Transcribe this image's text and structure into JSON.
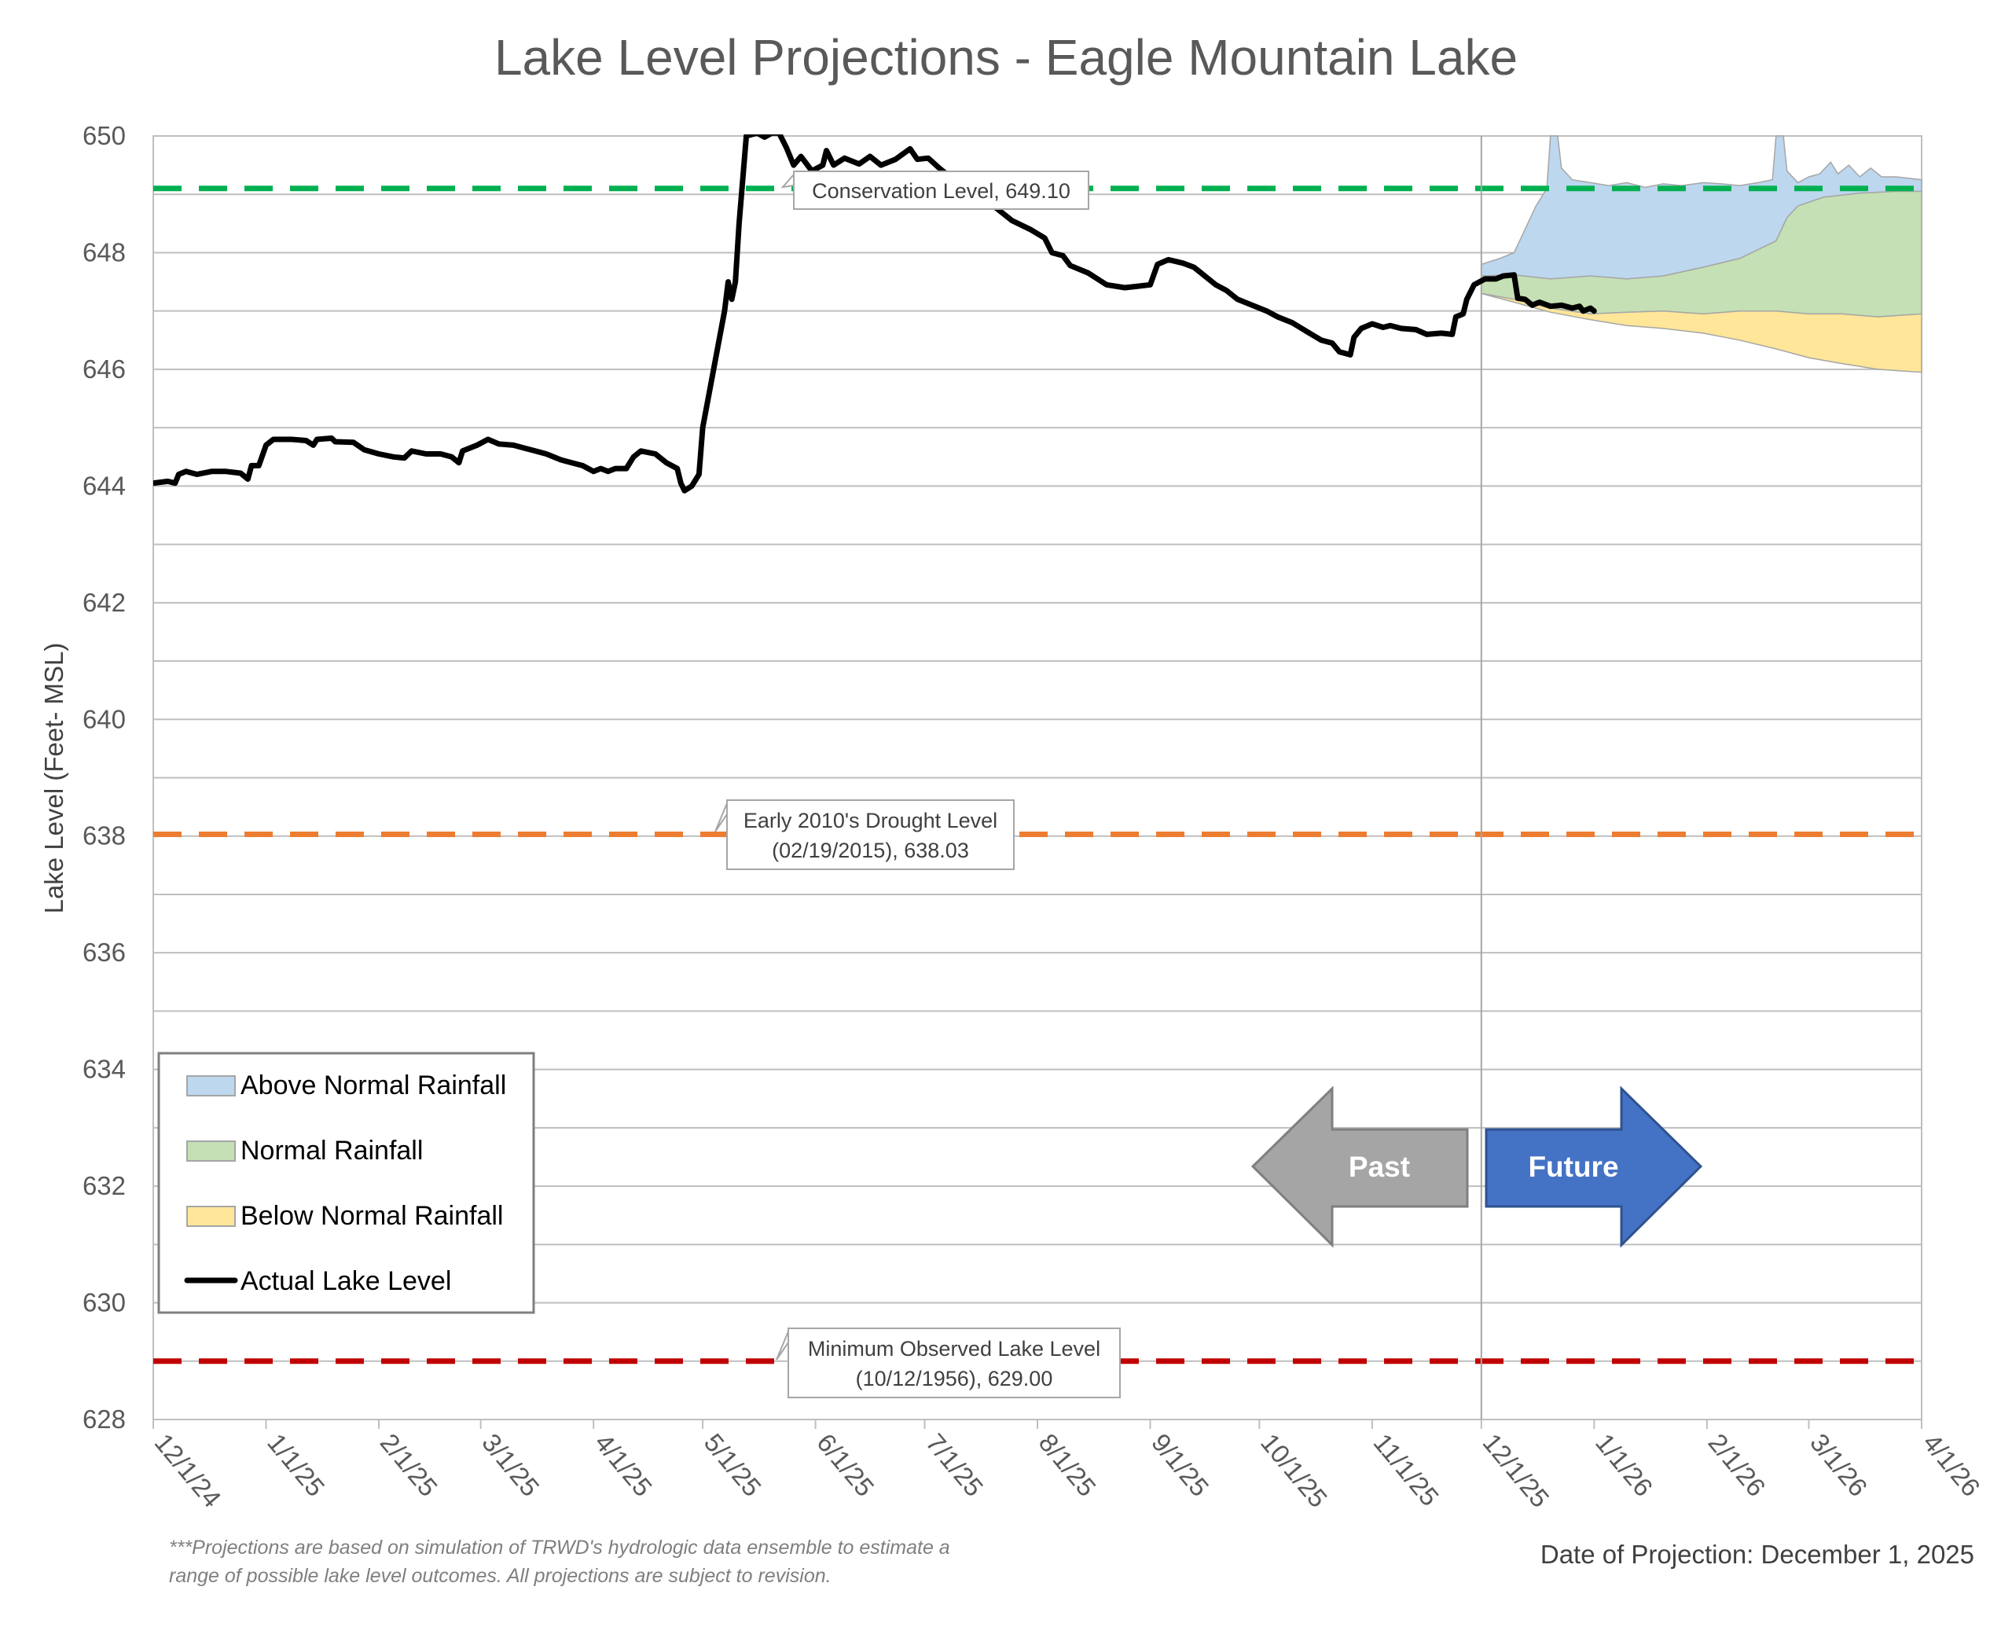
{
  "chart_data": {
    "type": "line",
    "title": "Lake Level Projections - Eagle Mountain Lake",
    "xlabel": "",
    "ylabel": "Lake Level (Feet- MSL)",
    "ylim": [
      628,
      650
    ],
    "yticks": [
      "628",
      "630",
      "632",
      "634",
      "636",
      "638",
      "640",
      "642",
      "644",
      "646",
      "648",
      "650"
    ],
    "xlim": [
      "2024-12-01",
      "2026-04-01"
    ],
    "xtick_labels": [
      "12/1/24",
      "1/1/25",
      "2/1/25",
      "3/1/25",
      "4/1/25",
      "5/1/25",
      "6/1/25",
      "7/1/25",
      "8/1/25",
      "9/1/25",
      "10/1/25",
      "11/1/25",
      "12/1/25",
      "1/1/26",
      "2/1/26",
      "3/1/26",
      "4/1/26"
    ],
    "xtick_dates": [
      "2024-12-01",
      "2025-01-01",
      "2025-02-01",
      "2025-03-01",
      "2025-04-01",
      "2025-05-01",
      "2025-06-01",
      "2025-07-01",
      "2025-08-01",
      "2025-09-01",
      "2025-10-01",
      "2025-11-01",
      "2025-12-01",
      "2026-01-01",
      "2026-02-01",
      "2026-03-01",
      "2026-04-01"
    ],
    "grid": true,
    "legend_position": "bottom-left",
    "legend": [
      {
        "label": "Above Normal Rainfall",
        "color": "#bdd7ee",
        "kind": "fill"
      },
      {
        "label": "Normal Rainfall",
        "color": "#c5e0b4",
        "kind": "fill"
      },
      {
        "label": "Below Normal Rainfall",
        "color": "#ffe699",
        "kind": "fill"
      },
      {
        "label": "Actual Lake Level",
        "color": "#000000",
        "kind": "line"
      }
    ],
    "reference_lines": [
      {
        "label_lines": [
          "Conservation Level, 649.10"
        ],
        "value": 649.1,
        "color": "#00b050"
      },
      {
        "label_lines": [
          "Early 2010's Drought Level",
          "(02/19/2015), 638.03"
        ],
        "value": 638.03,
        "color": "#ed7d31"
      },
      {
        "label_lines": [
          "Minimum Observed Lake Level",
          "(10/12/1956), 629.00"
        ],
        "value": 629.0,
        "color": "#c00000"
      }
    ],
    "projection_date": "2025-12-01",
    "actual_lake_level": [
      [
        "2024-12-01",
        644.05
      ],
      [
        "2024-12-05",
        644.08
      ],
      [
        "2024-12-07",
        644.05
      ],
      [
        "2024-12-08",
        644.2
      ],
      [
        "2024-12-10",
        644.25
      ],
      [
        "2024-12-13",
        644.2
      ],
      [
        "2024-12-17",
        644.25
      ],
      [
        "2024-12-21",
        644.25
      ],
      [
        "2024-12-25",
        644.22
      ],
      [
        "2024-12-27",
        644.12
      ],
      [
        "2024-12-28",
        644.35
      ],
      [
        "2024-12-30",
        644.35
      ],
      [
        "2025-01-01",
        644.7
      ],
      [
        "2025-01-03",
        644.8
      ],
      [
        "2025-01-08",
        644.8
      ],
      [
        "2025-01-12",
        644.78
      ],
      [
        "2025-01-14",
        644.7
      ],
      [
        "2025-01-15",
        644.8
      ],
      [
        "2025-01-19",
        644.82
      ],
      [
        "2025-01-20",
        644.76
      ],
      [
        "2025-01-25",
        644.75
      ],
      [
        "2025-01-28",
        644.62
      ],
      [
        "2025-02-01",
        644.55
      ],
      [
        "2025-02-05",
        644.5
      ],
      [
        "2025-02-08",
        644.48
      ],
      [
        "2025-02-10",
        644.6
      ],
      [
        "2025-02-14",
        644.55
      ],
      [
        "2025-02-18",
        644.55
      ],
      [
        "2025-02-21",
        644.5
      ],
      [
        "2025-02-23",
        644.4
      ],
      [
        "2025-02-24",
        644.6
      ],
      [
        "2025-02-28",
        644.7
      ],
      [
        "2025-03-03",
        644.8
      ],
      [
        "2025-03-06",
        644.72
      ],
      [
        "2025-03-10",
        644.7
      ],
      [
        "2025-03-13",
        644.65
      ],
      [
        "2025-03-16",
        644.6
      ],
      [
        "2025-03-19",
        644.55
      ],
      [
        "2025-03-21",
        644.5
      ],
      [
        "2025-03-23",
        644.45
      ],
      [
        "2025-03-26",
        644.4
      ],
      [
        "2025-03-29",
        644.35
      ],
      [
        "2025-04-01",
        644.25
      ],
      [
        "2025-04-03",
        644.3
      ],
      [
        "2025-04-05",
        644.25
      ],
      [
        "2025-04-07",
        644.3
      ],
      [
        "2025-04-10",
        644.3
      ],
      [
        "2025-04-12",
        644.5
      ],
      [
        "2025-04-14",
        644.6
      ],
      [
        "2025-04-18",
        644.55
      ],
      [
        "2025-04-21",
        644.4
      ],
      [
        "2025-04-24",
        644.3
      ],
      [
        "2025-04-25",
        644.05
      ],
      [
        "2025-04-26",
        643.92
      ],
      [
        "2025-04-28",
        644.0
      ],
      [
        "2025-04-30",
        644.2
      ],
      [
        "2025-05-01",
        645.0
      ],
      [
        "2025-05-04",
        646.0
      ],
      [
        "2025-05-07",
        647.0
      ],
      [
        "2025-05-08",
        647.5
      ],
      [
        "2025-05-09",
        647.2
      ],
      [
        "2025-05-10",
        647.5
      ],
      [
        "2025-05-11",
        648.5
      ],
      [
        "2025-05-13",
        650.0
      ],
      [
        "2025-05-16",
        650.3
      ],
      [
        "2025-05-18",
        649.98
      ],
      [
        "2025-05-20",
        650.1
      ],
      [
        "2025-05-22",
        650.05
      ],
      [
        "2025-05-24",
        649.8
      ],
      [
        "2025-05-26",
        649.5
      ],
      [
        "2025-05-28",
        649.65
      ],
      [
        "2025-05-31",
        649.4
      ],
      [
        "2025-06-03",
        649.5
      ],
      [
        "2025-06-04",
        649.75
      ],
      [
        "2025-06-06",
        649.5
      ],
      [
        "2025-06-09",
        649.62
      ],
      [
        "2025-06-13",
        649.52
      ],
      [
        "2025-06-16",
        649.65
      ],
      [
        "2025-06-19",
        649.5
      ],
      [
        "2025-06-23",
        649.6
      ],
      [
        "2025-06-27",
        649.78
      ],
      [
        "2025-06-29",
        649.6
      ],
      [
        "2025-07-02",
        649.62
      ],
      [
        "2025-07-05",
        649.45
      ],
      [
        "2025-07-10",
        649.2
      ],
      [
        "2025-07-15",
        649.0
      ],
      [
        "2025-07-20",
        648.8
      ],
      [
        "2025-07-25",
        648.55
      ],
      [
        "2025-07-30",
        648.4
      ],
      [
        "2025-08-03",
        648.25
      ],
      [
        "2025-08-05",
        648.0
      ],
      [
        "2025-08-08",
        647.95
      ],
      [
        "2025-08-10",
        647.78
      ],
      [
        "2025-08-15",
        647.65
      ],
      [
        "2025-08-20",
        647.45
      ],
      [
        "2025-08-25",
        647.4
      ],
      [
        "2025-08-28",
        647.42
      ],
      [
        "2025-09-01",
        647.45
      ],
      [
        "2025-09-03",
        647.8
      ],
      [
        "2025-09-06",
        647.88
      ],
      [
        "2025-09-10",
        647.82
      ],
      [
        "2025-09-13",
        647.75
      ],
      [
        "2025-09-16",
        647.6
      ],
      [
        "2025-09-19",
        647.45
      ],
      [
        "2025-09-22",
        647.35
      ],
      [
        "2025-09-25",
        647.2
      ],
      [
        "2025-09-29",
        647.1
      ],
      [
        "2025-10-03",
        647.0
      ],
      [
        "2025-10-06",
        646.9
      ],
      [
        "2025-10-10",
        646.8
      ],
      [
        "2025-10-14",
        646.65
      ],
      [
        "2025-10-18",
        646.5
      ],
      [
        "2025-10-21",
        646.45
      ],
      [
        "2025-10-23",
        646.3
      ],
      [
        "2025-10-26",
        646.25
      ],
      [
        "2025-10-27",
        646.55
      ],
      [
        "2025-10-29",
        646.7
      ],
      [
        "2025-11-01",
        646.78
      ],
      [
        "2025-11-04",
        646.72
      ],
      [
        "2025-11-06",
        646.75
      ],
      [
        "2025-11-09",
        646.7
      ],
      [
        "2025-11-13",
        646.68
      ],
      [
        "2025-11-16",
        646.6
      ],
      [
        "2025-11-20",
        646.62
      ],
      [
        "2025-11-23",
        646.6
      ],
      [
        "2025-11-24",
        646.9
      ],
      [
        "2025-11-26",
        646.95
      ],
      [
        "2025-11-27",
        647.2
      ],
      [
        "2025-11-29",
        647.45
      ],
      [
        "2025-12-02",
        647.55
      ],
      [
        "2025-12-05",
        647.55
      ],
      [
        "2025-12-07",
        647.6
      ],
      [
        "2025-12-10",
        647.62
      ],
      [
        "2025-12-11",
        647.22
      ],
      [
        "2025-12-13",
        647.2
      ],
      [
        "2025-12-15",
        647.1
      ],
      [
        "2025-12-17",
        647.15
      ],
      [
        "2025-12-20",
        647.08
      ],
      [
        "2025-12-23",
        647.1
      ],
      [
        "2025-12-26",
        647.05
      ],
      [
        "2025-12-28",
        647.08
      ],
      [
        "2025-12-29",
        647.0
      ],
      [
        "2025-12-31",
        647.05
      ],
      [
        "2026-01-01",
        647.0
      ]
    ],
    "projection_bands": [
      {
        "name": "Above Normal Rainfall",
        "color": "#bdd7ee",
        "upper": [
          [
            "2025-12-01",
            647.8
          ],
          [
            "2025-12-06",
            647.9
          ],
          [
            "2025-12-10",
            648.0
          ],
          [
            "2025-12-13",
            648.4
          ],
          [
            "2025-12-16",
            648.8
          ],
          [
            "2025-12-19",
            649.1
          ],
          [
            "2025-12-20",
            650.0
          ],
          [
            "2025-12-21",
            650.3
          ],
          [
            "2025-12-22",
            650.0
          ],
          [
            "2025-12-23",
            649.45
          ],
          [
            "2025-12-26",
            649.25
          ],
          [
            "2025-12-31",
            649.2
          ],
          [
            "2026-01-05",
            649.15
          ],
          [
            "2026-01-10",
            649.2
          ],
          [
            "2026-01-15",
            649.12
          ],
          [
            "2026-01-20",
            649.18
          ],
          [
            "2026-01-25",
            649.15
          ],
          [
            "2026-01-31",
            649.2
          ],
          [
            "2026-02-05",
            649.18
          ],
          [
            "2026-02-10",
            649.15
          ],
          [
            "2026-02-15",
            649.2
          ],
          [
            "2026-02-19",
            649.25
          ],
          [
            "2026-02-20",
            650.0
          ],
          [
            "2026-02-21",
            650.3
          ],
          [
            "2026-02-22",
            650.0
          ],
          [
            "2026-02-23",
            649.4
          ],
          [
            "2026-02-26",
            649.2
          ],
          [
            "2026-03-01",
            649.3
          ],
          [
            "2026-03-04",
            649.35
          ],
          [
            "2026-03-07",
            649.55
          ],
          [
            "2026-03-09",
            649.35
          ],
          [
            "2026-03-12",
            649.5
          ],
          [
            "2026-03-15",
            649.3
          ],
          [
            "2026-03-18",
            649.45
          ],
          [
            "2026-03-21",
            649.3
          ],
          [
            "2026-03-25",
            649.3
          ],
          [
            "2026-04-01",
            649.25
          ]
        ],
        "lower": [
          [
            "2025-12-01",
            647.6
          ],
          [
            "2025-12-10",
            647.62
          ],
          [
            "2025-12-20",
            647.55
          ],
          [
            "2025-12-31",
            647.6
          ],
          [
            "2026-01-10",
            647.55
          ],
          [
            "2026-01-20",
            647.6
          ],
          [
            "2026-01-31",
            647.75
          ],
          [
            "2026-02-10",
            647.9
          ],
          [
            "2026-02-20",
            648.2
          ],
          [
            "2026-02-23",
            648.6
          ],
          [
            "2026-02-26",
            648.8
          ],
          [
            "2026-03-05",
            648.95
          ],
          [
            "2026-03-15",
            649.02
          ],
          [
            "2026-03-25",
            649.05
          ],
          [
            "2026-04-01",
            649.05
          ]
        ]
      },
      {
        "name": "Normal Rainfall",
        "color": "#c5e0b4",
        "upper": [
          [
            "2025-12-01",
            647.6
          ],
          [
            "2025-12-10",
            647.62
          ],
          [
            "2025-12-20",
            647.55
          ],
          [
            "2025-12-31",
            647.6
          ],
          [
            "2026-01-10",
            647.55
          ],
          [
            "2026-01-20",
            647.6
          ],
          [
            "2026-01-31",
            647.75
          ],
          [
            "2026-02-10",
            647.9
          ],
          [
            "2026-02-20",
            648.2
          ],
          [
            "2026-02-23",
            648.6
          ],
          [
            "2026-02-26",
            648.8
          ],
          [
            "2026-03-05",
            648.95
          ],
          [
            "2026-03-15",
            649.02
          ],
          [
            "2026-03-25",
            649.05
          ],
          [
            "2026-04-01",
            649.05
          ]
        ],
        "lower": [
          [
            "2025-12-01",
            647.3
          ],
          [
            "2025-12-10",
            647.2
          ],
          [
            "2025-12-20",
            647.05
          ],
          [
            "2025-12-31",
            646.95
          ],
          [
            "2026-01-10",
            646.98
          ],
          [
            "2026-01-20",
            647.0
          ],
          [
            "2026-01-31",
            646.95
          ],
          [
            "2026-02-10",
            647.0
          ],
          [
            "2026-02-20",
            647.0
          ],
          [
            "2026-03-01",
            646.95
          ],
          [
            "2026-03-10",
            646.95
          ],
          [
            "2026-03-20",
            646.9
          ],
          [
            "2026-04-01",
            646.95
          ]
        ]
      },
      {
        "name": "Below Normal Rainfall",
        "color": "#ffe699",
        "upper": [
          [
            "2025-12-01",
            647.3
          ],
          [
            "2025-12-10",
            647.2
          ],
          [
            "2025-12-20",
            647.05
          ],
          [
            "2025-12-31",
            646.95
          ],
          [
            "2026-01-10",
            646.98
          ],
          [
            "2026-01-20",
            647.0
          ],
          [
            "2026-01-31",
            646.95
          ],
          [
            "2026-02-10",
            647.0
          ],
          [
            "2026-02-20",
            647.0
          ],
          [
            "2026-03-01",
            646.95
          ],
          [
            "2026-03-10",
            646.95
          ],
          [
            "2026-03-20",
            646.9
          ],
          [
            "2026-04-01",
            646.95
          ]
        ],
        "lower": [
          [
            "2025-12-01",
            647.3
          ],
          [
            "2025-12-10",
            647.15
          ],
          [
            "2025-12-20",
            646.98
          ],
          [
            "2025-12-31",
            646.85
          ],
          [
            "2026-01-10",
            646.75
          ],
          [
            "2026-01-20",
            646.7
          ],
          [
            "2026-01-31",
            646.62
          ],
          [
            "2026-02-10",
            646.5
          ],
          [
            "2026-02-20",
            646.35
          ],
          [
            "2026-03-01",
            646.2
          ],
          [
            "2026-03-10",
            646.1
          ],
          [
            "2026-03-20",
            646.0
          ],
          [
            "2026-04-01",
            645.95
          ]
        ]
      }
    ]
  },
  "arrows": {
    "past_label": "Past",
    "future_label": "Future",
    "past_color": "#a5a5a5",
    "future_color": "#4472c4"
  },
  "footer": {
    "note_line1": "***Projections are based on simulation of TRWD's hydrologic data ensemble to estimate a",
    "note_line2": "range of possible lake level outcomes.  All projections are subject to revision.",
    "projection_date_text": "Date of Projection: December 1, 2025"
  }
}
